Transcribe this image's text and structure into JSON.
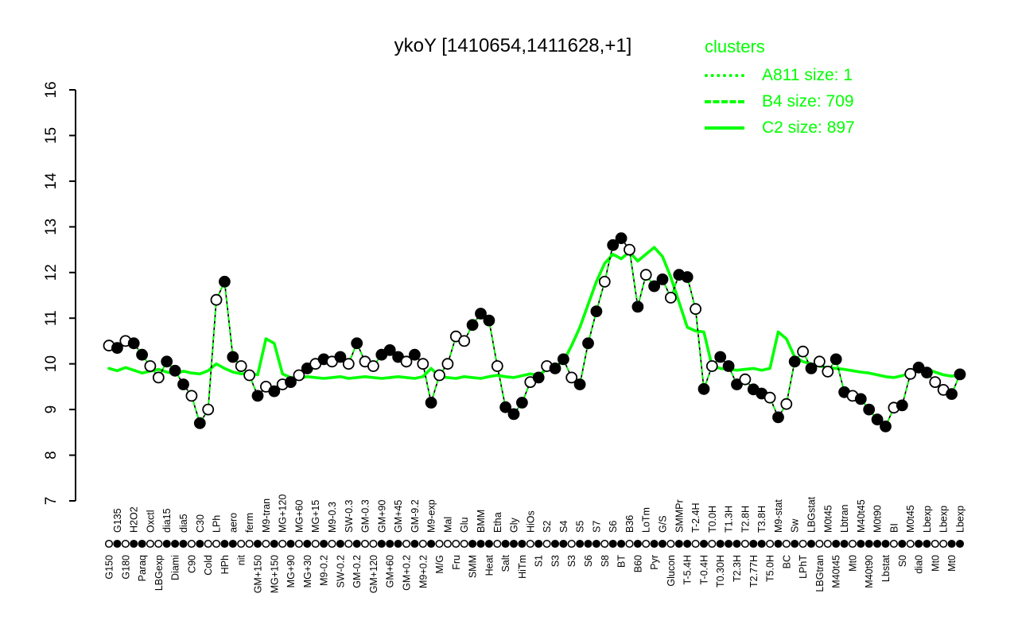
{
  "colors": {
    "cluster_green": "#00ff00",
    "gene_black": "#000000",
    "open_marker_fill": "#ffffff",
    "background": "#ffffff"
  },
  "chart_data": {
    "type": "line",
    "title": "ykoY [1410654,1411628,+1]",
    "ylim": [
      7,
      16
    ],
    "yticks": [
      7,
      8,
      9,
      10,
      11,
      12,
      13,
      14,
      15,
      16
    ],
    "grid": false,
    "legend": {
      "title": "clusters",
      "position": "top-right",
      "entries": [
        {
          "name": "A811",
          "size": 1,
          "linestyle": "dotted",
          "color": "#00ff00",
          "display": "A811 size: 1"
        },
        {
          "name": "B4",
          "size": 709,
          "linestyle": "dashed",
          "color": "#00ff00",
          "display": "B4 size: 709"
        },
        {
          "name": "C2",
          "size": 897,
          "linestyle": "solid",
          "color": "#00ff00",
          "display": "C2 size: 897"
        }
      ]
    },
    "x_label_rows": "alternating: even index below axis, odd index above axis; labels rotated 90",
    "categories": [
      "G150",
      "G135",
      "G180",
      "H2O2",
      "Paraq",
      "Oxctl",
      "LBGexp",
      "dia15",
      "Diami",
      "dia5",
      "C90",
      "C30",
      "Cold",
      "LPh",
      "HPh",
      "aero",
      "nit",
      "ferm",
      "GM+150",
      "M9-tran",
      "MG+150",
      "MG+120",
      "MG+90",
      "MG+60",
      "MG+30",
      "MG+15",
      "M9-0.2",
      "M9-0.3",
      "SW-0.2",
      "SW-0.3",
      "GM-0.2",
      "GM-0.3",
      "GM+120",
      "GM+90",
      "GM+60",
      "GM+45",
      "GM+0.2",
      "GM-9.2",
      "M9+0.2",
      "M9-exp",
      "M/G",
      "Mal",
      "Fru",
      "Glu",
      "SMM",
      "BMM",
      "Heat",
      "Etha",
      "Salt",
      "Gly",
      "HiTm",
      "HiOs",
      "S1",
      "S2",
      "S3",
      "S4",
      "S3",
      "S5",
      "S6",
      "S7",
      "S8",
      "S6",
      "BT",
      "B36",
      "B60",
      "LoTm",
      "Pyr",
      "G/S",
      "Glucon",
      "SMMPr",
      "T-5.4H",
      "T-2.4H",
      "T-0.4H",
      "T0.0H",
      "T0.30H",
      "T1.3H",
      "T2.3H",
      "T2.8H",
      "T2.77H",
      "T3.8H",
      "T5.0H",
      "M9-stat",
      "BC",
      "Sw",
      "LPhT",
      "LBGstat",
      "LBGtran",
      "M0t45",
      "M40t45",
      "Lbtran",
      "Mt0",
      "M40t45",
      "M40t90",
      "M0t90",
      "Lbstat",
      "BI",
      "S0",
      "M0t45",
      "dia0",
      "Lbexp",
      "Mt0",
      "Lbexp",
      "Mt0",
      "Lbexp"
    ],
    "series": [
      {
        "name": "ykoY expression",
        "style": "black dashed line with circle markers (filled=1, open=0)",
        "values": [
          10.4,
          10.35,
          10.5,
          10.45,
          10.2,
          9.95,
          9.7,
          10.05,
          9.85,
          9.55,
          9.3,
          8.7,
          9.0,
          11.4,
          11.8,
          10.15,
          9.95,
          9.75,
          9.3,
          9.5,
          9.4,
          9.55,
          9.6,
          9.75,
          9.9,
          10.0,
          10.1,
          10.05,
          10.15,
          10.0,
          10.45,
          10.05,
          9.95,
          10.2,
          10.3,
          10.15,
          10.05,
          10.2,
          10.0,
          9.15,
          9.75,
          10.0,
          10.6,
          10.5,
          10.85,
          11.1,
          10.95,
          9.95,
          9.05,
          8.9,
          9.15,
          9.6,
          9.7,
          9.95,
          9.9,
          10.1,
          9.7,
          9.55,
          10.45,
          11.15,
          11.8,
          12.6,
          12.75,
          12.5,
          11.25,
          11.95,
          11.7,
          11.85,
          11.45,
          11.95,
          11.9,
          11.2,
          9.45,
          9.95,
          10.15,
          9.95,
          9.55,
          9.66,
          9.44,
          9.35,
          9.26,
          8.83,
          9.12,
          10.05,
          10.27,
          9.9,
          10.05,
          9.83,
          10.1,
          9.38,
          9.3,
          9.23,
          9.0,
          8.78,
          8.63,
          9.04,
          9.09,
          9.78,
          9.92,
          9.81,
          9.6,
          9.43,
          9.34,
          9.77
        ],
        "filled": [
          0,
          1,
          0,
          1,
          1,
          0,
          0,
          1,
          1,
          1,
          0,
          1,
          0,
          0,
          1,
          1,
          0,
          0,
          1,
          0,
          1,
          0,
          1,
          0,
          1,
          0,
          1,
          0,
          1,
          0,
          1,
          0,
          0,
          1,
          1,
          1,
          0,
          1,
          0,
          1,
          0,
          0,
          0,
          0,
          1,
          1,
          1,
          0,
          1,
          1,
          1,
          0,
          1,
          0,
          1,
          1,
          0,
          1,
          1,
          1,
          0,
          1,
          1,
          0,
          1,
          0,
          1,
          1,
          0,
          1,
          1,
          0,
          1,
          0,
          1,
          1,
          1,
          0,
          1,
          1,
          0,
          1,
          0,
          1,
          0,
          1,
          0,
          0,
          1,
          1,
          0,
          1,
          1,
          1,
          1,
          0,
          1,
          0,
          1,
          1,
          0,
          0,
          1,
          1
        ]
      },
      {
        "name": "C2 cluster mean",
        "style": "green solid line",
        "values": [
          9.9,
          9.85,
          9.92,
          9.86,
          9.8,
          9.84,
          9.88,
          9.82,
          9.78,
          9.84,
          9.8,
          9.78,
          9.85,
          10.0,
          9.9,
          9.82,
          9.78,
          9.8,
          9.76,
          10.55,
          10.45,
          9.78,
          9.7,
          9.68,
          9.72,
          9.7,
          9.68,
          9.7,
          9.72,
          9.68,
          9.7,
          9.72,
          9.7,
          9.68,
          9.7,
          9.72,
          9.7,
          9.68,
          9.72,
          9.9,
          9.72,
          9.7,
          9.68,
          9.72,
          9.7,
          9.68,
          9.72,
          9.75,
          9.72,
          9.7,
          9.74,
          9.78,
          9.75,
          9.88,
          9.95,
          10.05,
          10.4,
          10.8,
          11.3,
          11.8,
          12.2,
          12.4,
          12.3,
          12.45,
          12.25,
          12.4,
          12.55,
          12.35,
          11.9,
          11.35,
          10.8,
          10.72,
          10.7,
          9.95,
          9.9,
          9.88,
          9.86,
          9.88,
          9.9,
          9.86,
          9.9,
          10.7,
          10.55,
          10.15,
          10.05,
          10.0,
          9.95,
          9.92,
          9.9,
          9.88,
          9.85,
          9.82,
          9.8,
          9.76,
          9.72,
          9.7,
          9.74,
          9.8,
          9.86,
          9.88,
          9.82,
          9.76,
          9.73,
          9.76
        ]
      },
      {
        "name": "A811 cluster (size 1) and B4 cluster (size 709)",
        "style": "green dotted / green dashed lines tracking the gene profile"
      }
    ]
  }
}
